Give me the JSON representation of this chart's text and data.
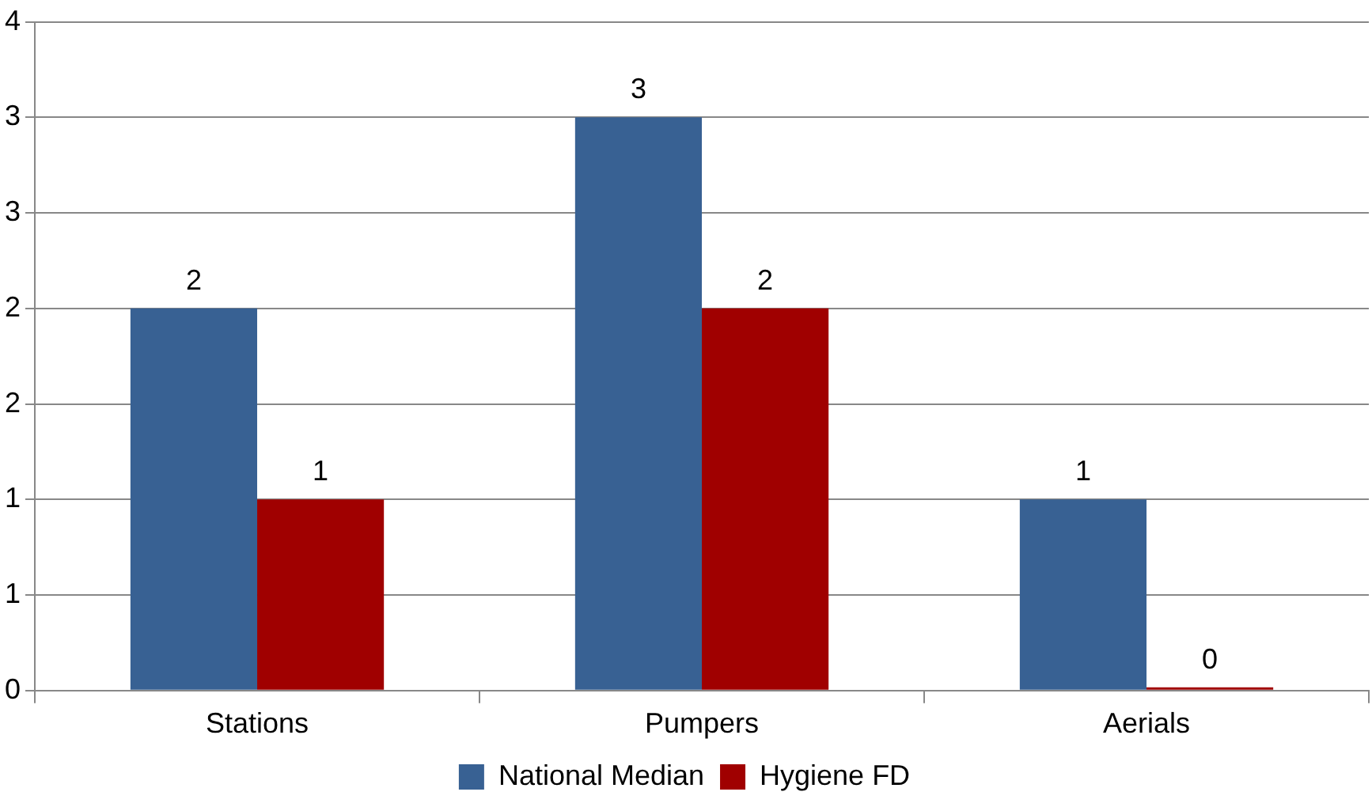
{
  "chart_data": {
    "type": "bar",
    "categories": [
      "Stations",
      "Pumpers",
      "Aerials"
    ],
    "series": [
      {
        "name": "National Median",
        "color": "#386193",
        "values": [
          2,
          3,
          1
        ]
      },
      {
        "name": "Hygiene FD",
        "color": "#a00000",
        "values": [
          1,
          2,
          0
        ]
      }
    ],
    "ylim": [
      0,
      3.5
    ],
    "yticks": [
      0,
      {
        "value": 0.5,
        "label": "1"
      },
      1,
      {
        "value": 1.5,
        "label": "2"
      },
      2,
      {
        "value": 2.5,
        "label": "3"
      },
      3,
      {
        "value": 3.5,
        "label": "4"
      }
    ],
    "grid": "y",
    "legend": "bottom",
    "data_labels": true
  }
}
